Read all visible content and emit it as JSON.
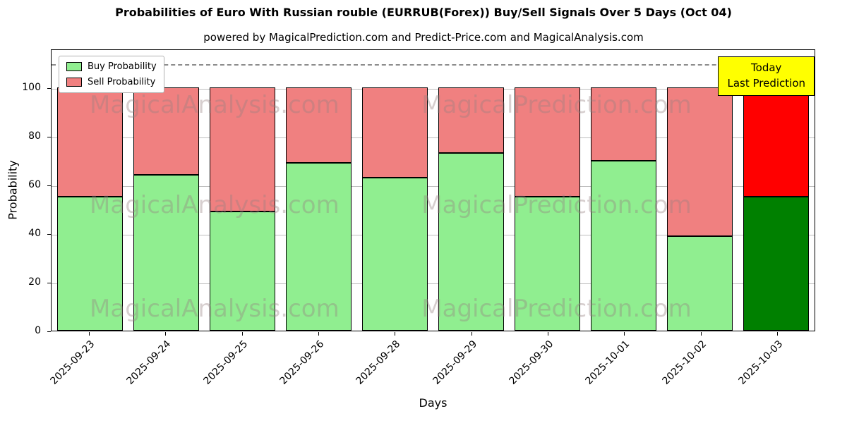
{
  "title": "Probabilities of Euro With Russian rouble (EURRUB(Forex)) Buy/Sell Signals Over 5 Days (Oct 04)",
  "subtitle": "powered by MagicalPrediction.com and Predict-Price.com and MagicalAnalysis.com",
  "annotation": {
    "line1": "Today",
    "line2": "Last Prediction"
  },
  "watermarks": {
    "left": "MagicalAnalysis.com",
    "right": "MagicalPrediction.com"
  },
  "chart_data": {
    "type": "bar",
    "stacked": true,
    "title": "Probabilities of Euro With Russian rouble (EURRUB(Forex)) Buy/Sell Signals Over 5 Days (Oct 04)",
    "categories": [
      "2025-09-23",
      "2025-09-24",
      "2025-09-25",
      "2025-09-26",
      "2025-09-28",
      "2025-09-29",
      "2025-09-30",
      "2025-10-01",
      "2025-10-02",
      "2025-10-03"
    ],
    "series": [
      {
        "name": "Buy Probability",
        "color": "#90ee90",
        "last_bar_color": "#008000",
        "values": [
          55,
          64,
          49,
          69,
          63,
          73,
          55,
          70,
          39,
          55
        ]
      },
      {
        "name": "Sell Probability",
        "color": "#f08080",
        "last_bar_color": "#ff0000",
        "values": [
          45,
          36,
          51,
          31,
          37,
          27,
          45,
          30,
          61,
          45
        ]
      }
    ],
    "xlabel": "Days",
    "ylabel": "Probability",
    "ylim": [
      0,
      116
    ],
    "yticks": [
      0,
      20,
      40,
      60,
      80,
      100
    ],
    "dashed_line_y": 110,
    "grid": true,
    "legend_position": "upper left",
    "last_bar_annotation": "Today Last Prediction"
  }
}
